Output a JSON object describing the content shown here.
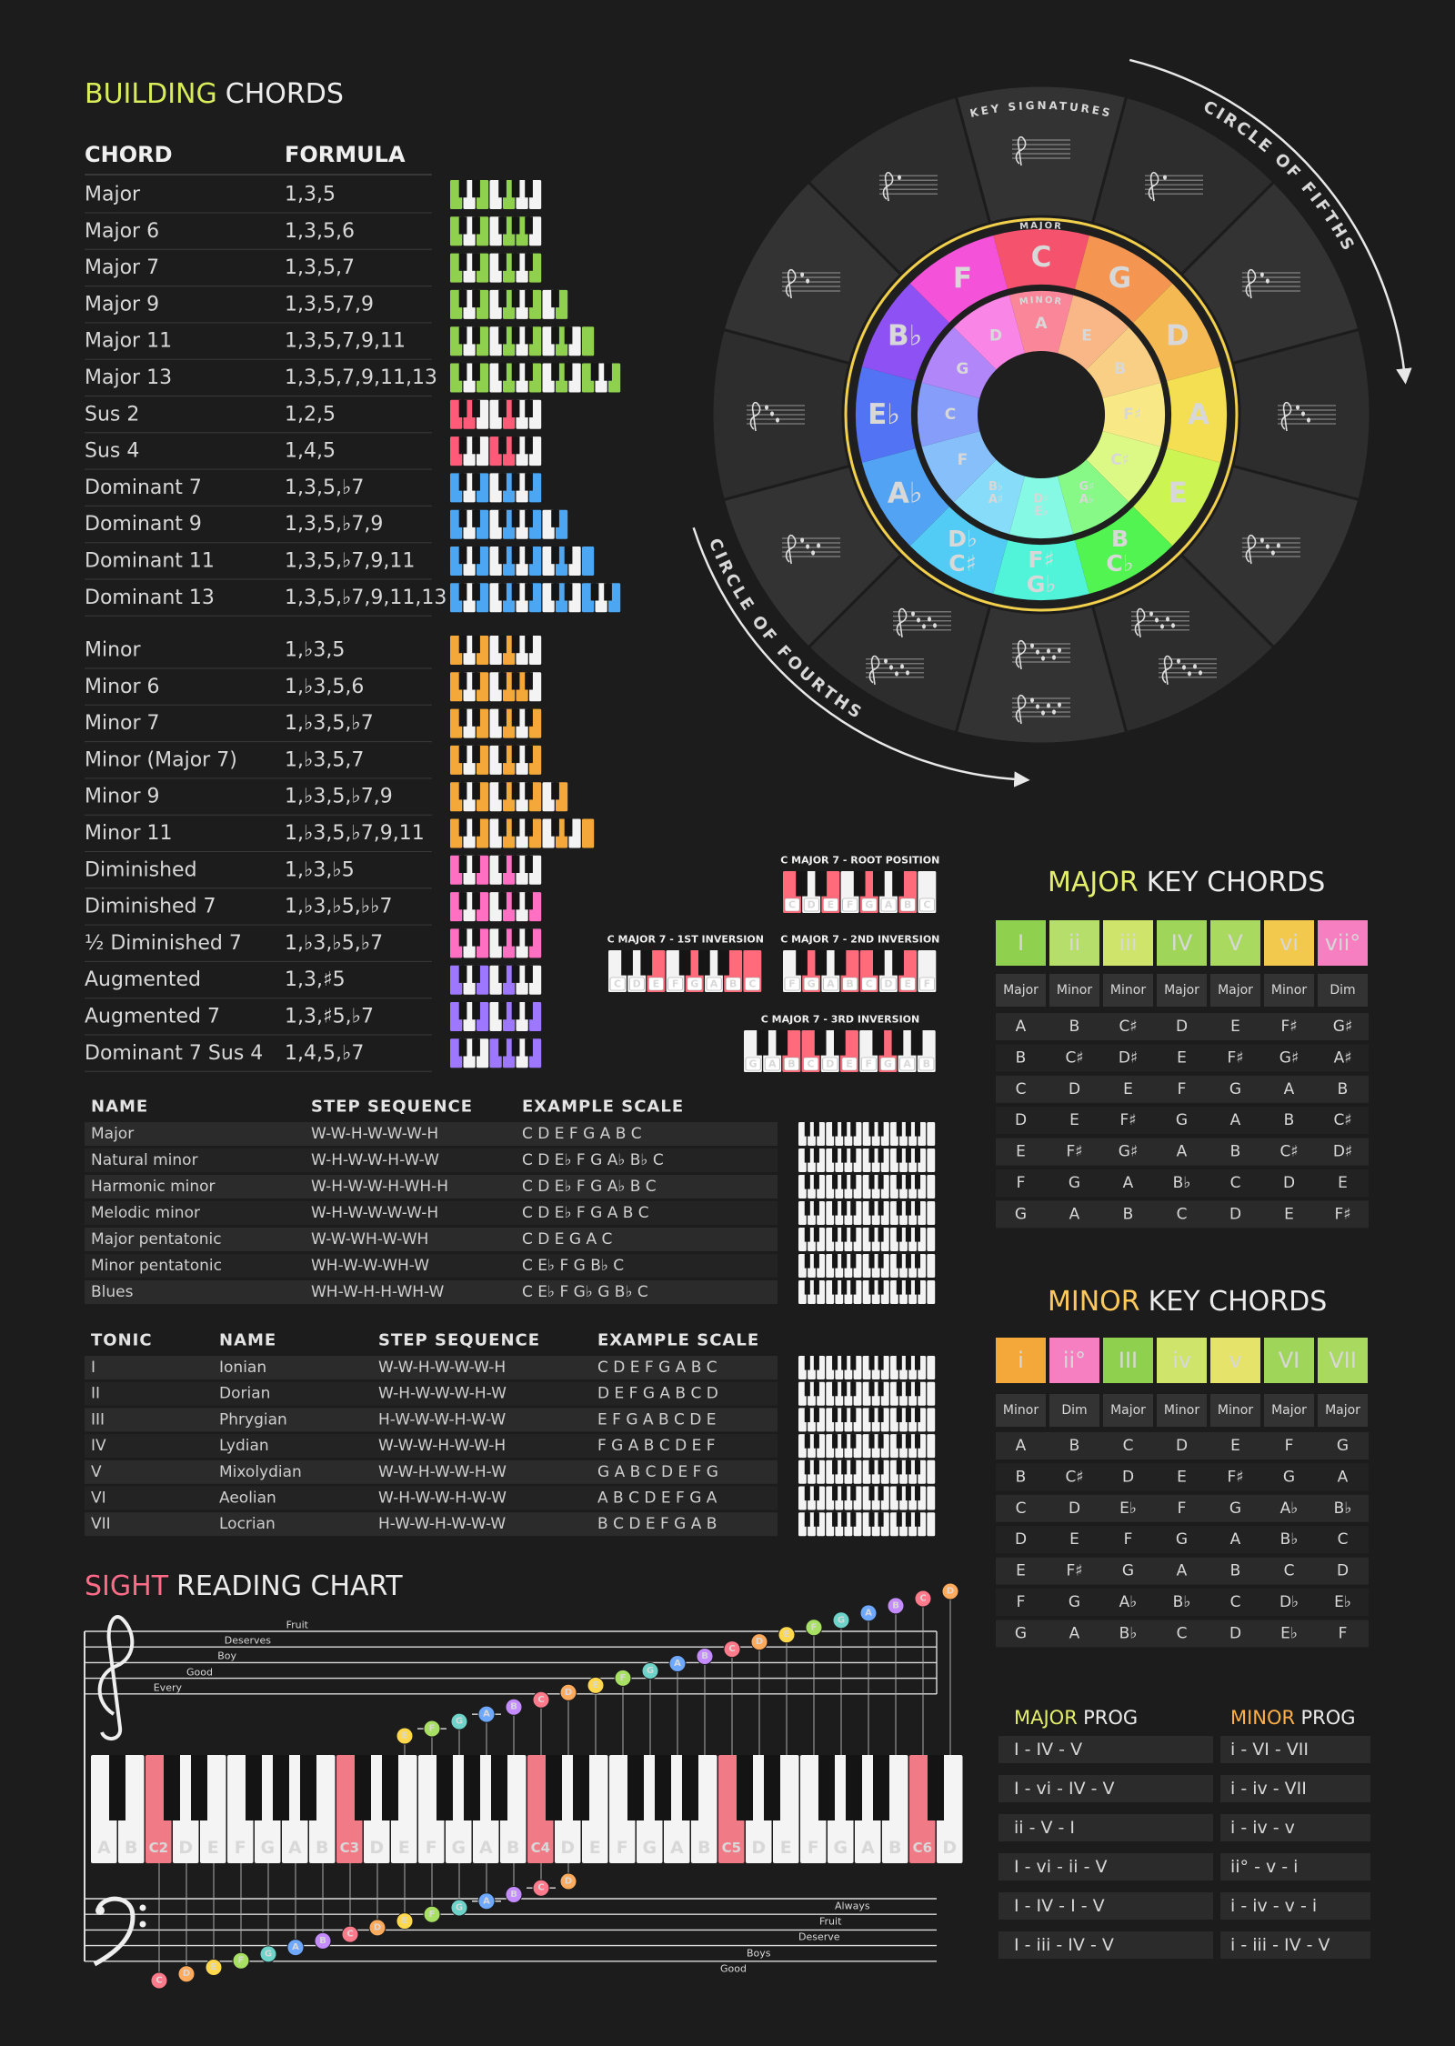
{
  "building_chords": {
    "title": [
      "BUILDING",
      "CHORDS"
    ],
    "headers": [
      "CHORD",
      "FORMULA"
    ],
    "groups": [
      [
        {
          "name": "Major",
          "formula": "1,3,5",
          "color": "#8fd14f"
        },
        {
          "name": "Major 6",
          "formula": "1,3,5,6",
          "color": "#8fd14f"
        },
        {
          "name": "Major 7",
          "formula": "1,3,5,7",
          "color": "#8fd14f"
        },
        {
          "name": "Major 9",
          "formula": "1,3,5,7,9",
          "color": "#8fd14f"
        },
        {
          "name": "Major 11",
          "formula": "1,3,5,7,9,11",
          "color": "#8fd14f"
        },
        {
          "name": "Major 13",
          "formula": "1,3,5,7,9,11,13",
          "color": "#8fd14f"
        },
        {
          "name": "Sus 2",
          "formula": "1,2,5",
          "color": "#ff5b78"
        },
        {
          "name": "Sus 4",
          "formula": "1,4,5",
          "color": "#ff5b78"
        },
        {
          "name": "Dominant 7",
          "formula": "1,3,5,♭7",
          "color": "#4da6f2"
        },
        {
          "name": "Dominant 9",
          "formula": "1,3,5,♭7,9",
          "color": "#4da6f2"
        },
        {
          "name": "Dominant 11",
          "formula": "1,3,5,♭7,9,11",
          "color": "#4da6f2"
        },
        {
          "name": "Dominant 13",
          "formula": "1,3,5,♭7,9,11,13",
          "color": "#4da6f2"
        }
      ],
      [
        {
          "name": "Minor",
          "formula": "1,♭3,5",
          "color": "#f5a83a"
        },
        {
          "name": "Minor 6",
          "formula": "1,♭3,5,6",
          "color": "#f5a83a"
        },
        {
          "name": "Minor 7",
          "formula": "1,♭3,5,♭7",
          "color": "#f5a83a"
        },
        {
          "name": "Minor (Major 7)",
          "formula": "1,♭3,5,7",
          "color": "#f5a83a"
        },
        {
          "name": "Minor 9",
          "formula": "1,♭3,5,♭7,9",
          "color": "#f5a83a"
        },
        {
          "name": "Minor 11",
          "formula": "1,♭3,5,♭7,9,11",
          "color": "#f5a83a"
        },
        {
          "name": "Diminished",
          "formula": "1,♭3,♭5",
          "color": "#ff6fc2"
        },
        {
          "name": "Diminished 7",
          "formula": "1,♭3,♭5,♭♭7",
          "color": "#ff6fc2"
        },
        {
          "name": "½ Diminished 7",
          "formula": "1,♭3,♭5,♭7",
          "color": "#ff6fc2"
        },
        {
          "name": "Augmented",
          "formula": "1,3,♯5",
          "color": "#9d78ff"
        },
        {
          "name": "Augmented 7",
          "formula": "1,3,♯5,♭7",
          "color": "#9d78ff"
        },
        {
          "name": "Dominant 7 Sus 4",
          "formula": "1,4,5,♭7",
          "color": "#9d78ff"
        }
      ]
    ]
  },
  "circle": {
    "label_top": "KEY SIGNATURES",
    "label_fifths": "CIRCLE OF FIFTHS",
    "label_fourths": "CIRCLE OF FOURTHS",
    "major_label": "MAJOR",
    "minor_label": "MINOR",
    "major": [
      [
        "C"
      ],
      [
        "G"
      ],
      [
        "D"
      ],
      [
        "A"
      ],
      [
        "E"
      ],
      [
        "B",
        "C♭"
      ],
      [
        "F♯",
        "G♭"
      ],
      [
        "D♭",
        "C♯"
      ],
      [
        "A♭"
      ],
      [
        "E♭"
      ],
      [
        "B♭"
      ],
      [
        "F"
      ]
    ],
    "minor": [
      [
        "A"
      ],
      [
        "E"
      ],
      [
        "B"
      ],
      [
        "F♯"
      ],
      [
        "C♯"
      ],
      [
        "G♯",
        "A♭"
      ],
      [
        "D♯",
        "E♭"
      ],
      [
        "B♭",
        "A♯"
      ],
      [
        "F"
      ],
      [
        "C"
      ],
      [
        "G"
      ],
      [
        "D"
      ]
    ]
  },
  "inversions": [
    {
      "title": "C MAJOR 7 - ROOT POSITION",
      "keys": [
        "C",
        "D",
        "E",
        "F",
        "G",
        "A",
        "B",
        "C"
      ]
    },
    {
      "title": "C MAJOR 7 - 1ST INVERSION",
      "keys": [
        "C",
        "D",
        "E",
        "F",
        "G",
        "A",
        "B",
        "C"
      ]
    },
    {
      "title": "C MAJOR 7 - 2ND INVERSION",
      "keys": [
        "F",
        "G",
        "A",
        "B",
        "C",
        "D",
        "E",
        "F"
      ]
    },
    {
      "title": "C MAJOR 7 - 3RD INVERSION",
      "keys": [
        "G",
        "A",
        "B",
        "C",
        "D",
        "E",
        "F",
        "G",
        "A",
        "B"
      ]
    }
  ],
  "scales": {
    "headers": [
      "NAME",
      "STEP SEQUENCE",
      "EXAMPLE SCALE"
    ],
    "rows": [
      [
        "Major",
        "W-W-H-W-W-W-H",
        "C D E F G A B C"
      ],
      [
        "Natural minor",
        "W-H-W-W-H-W-W",
        "C D E♭ F G A♭ B♭ C"
      ],
      [
        "Harmonic minor",
        "W-H-W-W-H-WH-H",
        "C D E♭ F G A♭ B C"
      ],
      [
        "Melodic minor",
        "W-H-W-W-W-W-H",
        "C D E♭ F G A B C"
      ],
      [
        "Major pentatonic",
        "W-W-WH-W-WH",
        "C D E G A C"
      ],
      [
        "Minor pentatonic",
        "WH-W-W-WH-W",
        "C E♭ F G B♭ C"
      ],
      [
        "Blues",
        "WH-W-H-H-WH-W",
        "C E♭ F G♭ G B♭ C"
      ]
    ]
  },
  "modes": {
    "headers": [
      "TONIC",
      "NAME",
      "STEP SEQUENCE",
      "EXAMPLE SCALE"
    ],
    "rows": [
      [
        "I",
        "Ionian",
        "W-W-H-W-W-W-H",
        "C D E F G A B C"
      ],
      [
        "II",
        "Dorian",
        "W-H-W-W-W-H-W",
        "D E F G A B C D"
      ],
      [
        "III",
        "Phrygian",
        "H-W-W-W-H-W-W",
        "E F G A B C D E"
      ],
      [
        "IV",
        "Lydian",
        "W-W-W-H-W-W-H",
        "F G A B C D E F"
      ],
      [
        "V",
        "Mixolydian",
        "W-W-H-W-W-H-W",
        "G A B C D E F G"
      ],
      [
        "VI",
        "Aeolian",
        "W-H-W-W-H-W-W",
        "A B C D E F G A"
      ],
      [
        "VII",
        "Locrian",
        "H-W-W-H-W-W-W",
        "B C D E F G A B"
      ]
    ]
  },
  "major_key_chords": {
    "title": [
      "MAJOR",
      "KEY CHORDS"
    ],
    "numerals": [
      "I",
      "ii",
      "iii",
      "IV",
      "V",
      "vi",
      "vii°"
    ],
    "colors": [
      "#8fd14f",
      "#b5df6a",
      "#cfe46a",
      "#9fd65a",
      "#a9d95f",
      "#f2c94c",
      "#f57fc1"
    ],
    "qualities": [
      "Major",
      "Minor",
      "Minor",
      "Major",
      "Major",
      "Minor",
      "Dim"
    ],
    "rows": [
      [
        "A",
        "B",
        "C♯",
        "D",
        "E",
        "F♯",
        "G♯"
      ],
      [
        "B",
        "C♯",
        "D♯",
        "E",
        "F♯",
        "G♯",
        "A♯"
      ],
      [
        "C",
        "D",
        "E",
        "F",
        "G",
        "A",
        "B"
      ],
      [
        "D",
        "E",
        "F♯",
        "G",
        "A",
        "B",
        "C♯"
      ],
      [
        "E",
        "F♯",
        "G♯",
        "A",
        "B",
        "C♯",
        "D♯"
      ],
      [
        "F",
        "G",
        "A",
        "B♭",
        "C",
        "D",
        "E"
      ],
      [
        "G",
        "A",
        "B",
        "C",
        "D",
        "E",
        "F♯"
      ]
    ]
  },
  "minor_key_chords": {
    "title": [
      "MINOR",
      "KEY CHORDS"
    ],
    "numerals": [
      "i",
      "ii°",
      "III",
      "iv",
      "v",
      "VI",
      "VII"
    ],
    "colors": [
      "#f5a83a",
      "#f57fc1",
      "#8fd14f",
      "#cfe46a",
      "#e6e36a",
      "#9fd65a",
      "#a9d95f"
    ],
    "qualities": [
      "Minor",
      "Dim",
      "Major",
      "Minor",
      "Minor",
      "Major",
      "Major"
    ],
    "rows": [
      [
        "A",
        "B",
        "C",
        "D",
        "E",
        "F",
        "G"
      ],
      [
        "B",
        "C♯",
        "D",
        "E",
        "F♯",
        "G",
        "A"
      ],
      [
        "C",
        "D",
        "E♭",
        "F",
        "G",
        "A♭",
        "B♭"
      ],
      [
        "D",
        "E",
        "F",
        "G",
        "A",
        "B♭",
        "C"
      ],
      [
        "E",
        "F♯",
        "G",
        "A",
        "B",
        "C",
        "D"
      ],
      [
        "F",
        "G",
        "A♭",
        "B♭",
        "C",
        "D♭",
        "E♭"
      ],
      [
        "G",
        "A",
        "B♭",
        "C",
        "D",
        "E♭",
        "F"
      ]
    ]
  },
  "progressions": {
    "headers": [
      [
        "MAJOR",
        "PROG"
      ],
      [
        "MINOR",
        "PROG"
      ]
    ],
    "major": [
      "I - IV - V",
      "I - vi - IV - V",
      "ii - V - I",
      "I - vi - ii - V",
      "I - IV - I - V",
      "I - iii - IV - V"
    ],
    "minor": [
      "i - VI - VII",
      "i - iv - VII",
      "i - iv - v",
      "ii° - v - i",
      "i - iv - v - i",
      "i - iii - IV - V"
    ]
  },
  "sight_reading": {
    "title": [
      "SIGHT",
      "READING CHART"
    ],
    "treble_mnemonic": [
      "Every",
      "Good",
      "Boy",
      "Deserves",
      "Fruit"
    ],
    "bass_mnemonic": [
      "Good",
      "Boys",
      "Deserve",
      "Fruit",
      "Always"
    ],
    "keys": [
      "A",
      "B",
      "C2",
      "D",
      "E",
      "F",
      "G",
      "A",
      "B",
      "C3",
      "D",
      "E",
      "F",
      "G",
      "A",
      "B",
      "C4",
      "D",
      "E",
      "F",
      "G",
      "A",
      "B",
      "C5",
      "D",
      "E",
      "F",
      "G",
      "A",
      "B",
      "C6",
      "D"
    ],
    "treble_notes": [
      "E",
      "F",
      "G",
      "A",
      "B",
      "C",
      "D",
      "E",
      "F",
      "G",
      "A",
      "B",
      "C",
      "D",
      "E",
      "F",
      "G",
      "A",
      "B",
      "C",
      "D"
    ],
    "bass_notes": [
      "C",
      "D",
      "E",
      "F",
      "G",
      "A",
      "B",
      "C",
      "D",
      "E",
      "F",
      "G",
      "A",
      "B",
      "C",
      "D"
    ]
  }
}
